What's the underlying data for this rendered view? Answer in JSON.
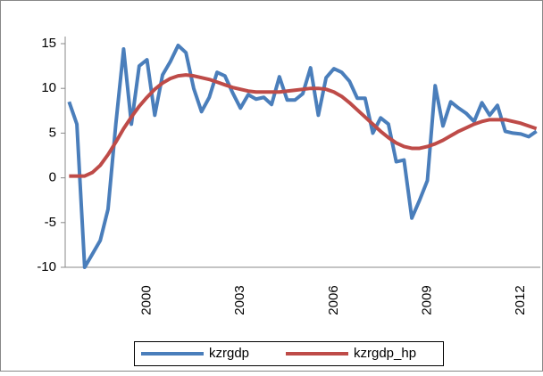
{
  "chart_data": {
    "type": "line",
    "categories": [
      null,
      null,
      null,
      null,
      null,
      null,
      null,
      null,
      null,
      null,
      "2000",
      null,
      null,
      null,
      null,
      null,
      null,
      null,
      null,
      null,
      null,
      null,
      "2003",
      null,
      null,
      null,
      null,
      null,
      null,
      null,
      null,
      null,
      null,
      null,
      "2006",
      null,
      null,
      null,
      null,
      null,
      null,
      null,
      null,
      null,
      null,
      null,
      "2009",
      null,
      null,
      null,
      null,
      null,
      null,
      null,
      null,
      null,
      null,
      null,
      "2012",
      null,
      null
    ],
    "series": [
      {
        "name": "kzrgdp",
        "color": "#4a7ebb",
        "values": [
          8.5,
          6,
          -10,
          -8.5,
          -7,
          -3.5,
          6,
          14.4,
          6,
          12.5,
          13.2,
          7,
          11.5,
          13,
          14.8,
          14,
          10,
          7.4,
          9,
          11.8,
          11.4,
          9.5,
          7.8,
          9.3,
          8.8,
          9,
          8.2,
          11.3,
          8.7,
          8.7,
          9.4,
          12.3,
          7,
          11.2,
          12.2,
          11.8,
          10.8,
          8.9,
          8.9,
          5,
          6.7,
          6,
          1.8,
          2,
          -4.5,
          -2.5,
          -0.3,
          10.3,
          5.8,
          8.5,
          7.8,
          7.2,
          6.3,
          8.4,
          7,
          8.1,
          5.2,
          5,
          4.9,
          4.6,
          5.2
        ]
      },
      {
        "name": "kzrgdp_hp",
        "color": "#be4b48",
        "values": [
          0.2,
          0.2,
          0.2,
          0.6,
          1.4,
          2.6,
          4,
          5.5,
          6.8,
          8,
          9,
          9.9,
          10.6,
          11.1,
          11.4,
          11.5,
          11.4,
          11.2,
          11,
          10.7,
          10.4,
          10.1,
          9.9,
          9.7,
          9.6,
          9.6,
          9.6,
          9.6,
          9.7,
          9.8,
          9.9,
          10,
          10,
          9.9,
          9.6,
          9.1,
          8.4,
          7.6,
          6.8,
          6,
          5.2,
          4.5,
          3.9,
          3.5,
          3.3,
          3.3,
          3.5,
          3.8,
          4.2,
          4.7,
          5.2,
          5.6,
          6,
          6.3,
          6.5,
          6.5,
          6.5,
          6.3,
          6.1,
          5.8,
          5.5
        ]
      }
    ],
    "ylim": [
      -10,
      15
    ],
    "yticks": [
      -10,
      -5,
      0,
      5,
      10,
      15
    ],
    "grid": false,
    "legend": "bottom"
  }
}
